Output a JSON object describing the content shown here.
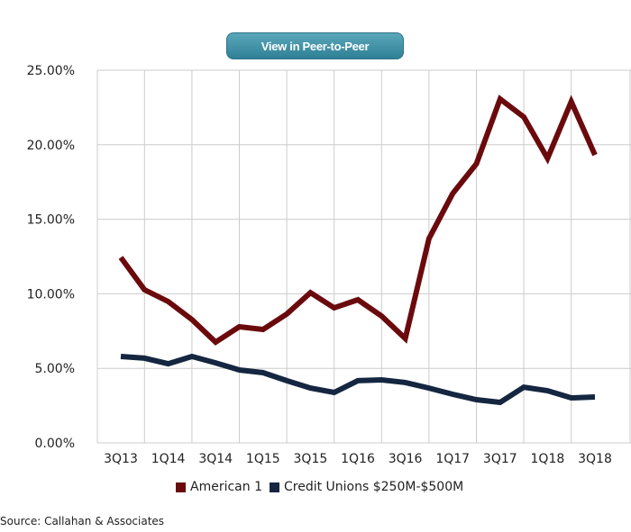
{
  "button": {
    "label": "View in Peer-to-Peer"
  },
  "source": "Source: Callahan & Associates",
  "colors": {
    "american1": "#6b0a0d",
    "credit_unions": "#142640",
    "grid": "#cccccc"
  },
  "chart_data": {
    "type": "line",
    "title": "",
    "xlabel": "",
    "ylabel": "",
    "ylim": [
      0,
      25
    ],
    "yticks": [
      "0.00%",
      "5.00%",
      "10.00%",
      "15.00%",
      "20.00%",
      "25.00%"
    ],
    "ytick_values": [
      0,
      5,
      10,
      15,
      20,
      25
    ],
    "grid": true,
    "legend": "bottom",
    "x": [
      "3Q13",
      "4Q13",
      "1Q14",
      "2Q14",
      "3Q14",
      "4Q14",
      "1Q15",
      "2Q15",
      "3Q15",
      "4Q15",
      "1Q16",
      "2Q16",
      "3Q16",
      "4Q16",
      "1Q17",
      "2Q17",
      "3Q17",
      "4Q17",
      "1Q18",
      "2Q18",
      "3Q18"
    ],
    "xtick_labels": [
      "3Q13",
      "1Q14",
      "3Q14",
      "1Q15",
      "3Q15",
      "1Q16",
      "3Q16",
      "1Q17",
      "3Q17",
      "1Q18",
      "3Q18"
    ],
    "series": [
      {
        "name": "American 1",
        "color": "#6b0a0d",
        "values": [
          12.44,
          10.27,
          9.48,
          8.27,
          6.76,
          7.79,
          7.61,
          8.64,
          10.08,
          9.06,
          9.6,
          8.51,
          7.0,
          13.71,
          16.73,
          18.72,
          23.07,
          21.86,
          19.08,
          22.89,
          19.32
        ]
      },
      {
        "name": "Credit Unions $250M-$500M",
        "color": "#142640",
        "values": [
          5.8,
          5.68,
          5.31,
          5.8,
          5.37,
          4.89,
          4.71,
          4.17,
          3.68,
          3.38,
          4.17,
          4.23,
          4.05,
          3.68,
          3.26,
          2.9,
          2.72,
          3.74,
          3.5,
          3.02,
          3.08
        ]
      }
    ]
  }
}
